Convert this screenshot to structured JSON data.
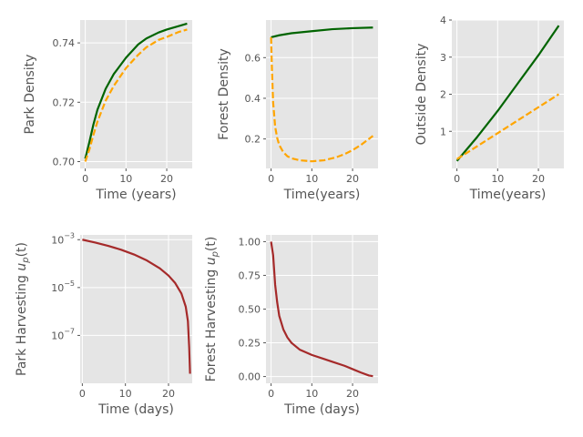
{
  "figure_label": "Five-panel figure",
  "chart_data": [
    {
      "id": "park-density",
      "type": "line",
      "xlabel": "Time (years)",
      "ylabel": "Park Density",
      "xlim": [
        -1.25,
        26.25
      ],
      "ylim": [
        0.6977,
        0.7477
      ],
      "xticks": [
        0,
        10,
        20
      ],
      "yticks": [
        0.7,
        0.72,
        0.74
      ],
      "ytick_labels": [
        "0.70",
        "0.72",
        "0.74"
      ],
      "grid": true,
      "series": [
        {
          "color": "#006400",
          "style": "solid",
          "x": [
            0,
            1,
            2,
            3,
            5,
            7,
            10,
            13,
            15,
            18,
            20,
            23,
            25
          ],
          "y": [
            0.701,
            0.7065,
            0.7125,
            0.7175,
            0.7245,
            0.7295,
            0.735,
            0.7395,
            0.7415,
            0.7435,
            0.7445,
            0.7457,
            0.7465
          ]
        },
        {
          "color": "#FFA500",
          "style": "dashed",
          "x": [
            0,
            1,
            2,
            3,
            5,
            7,
            10,
            13,
            15,
            18,
            20,
            23,
            25
          ],
          "y": [
            0.7,
            0.704,
            0.709,
            0.7135,
            0.7205,
            0.7255,
            0.7315,
            0.736,
            0.7385,
            0.741,
            0.742,
            0.7437,
            0.7445
          ]
        }
      ]
    },
    {
      "id": "forest-density",
      "type": "line",
      "xlabel": "Time(years)",
      "ylabel": "Forest Density",
      "xlim": [
        -1.25,
        26.25
      ],
      "ylim": [
        0.055,
        0.785
      ],
      "xticks": [
        0,
        10,
        20
      ],
      "yticks": [
        0.2,
        0.4,
        0.6
      ],
      "ytick_labels": [
        "0.2",
        "0.4",
        "0.6"
      ],
      "grid": true,
      "series": [
        {
          "color": "#006400",
          "style": "solid",
          "x": [
            0,
            2,
            5,
            10,
            15,
            20,
            25
          ],
          "y": [
            0.7,
            0.71,
            0.72,
            0.73,
            0.74,
            0.745,
            0.748
          ]
        },
        {
          "color": "#FFA500",
          "style": "dashed",
          "x": [
            0,
            0.2,
            0.5,
            1,
            1.5,
            2,
            3,
            4,
            5,
            7,
            10,
            13,
            16,
            18,
            20,
            22,
            25
          ],
          "y": [
            0.7,
            0.55,
            0.38,
            0.26,
            0.205,
            0.17,
            0.135,
            0.115,
            0.105,
            0.095,
            0.09,
            0.095,
            0.11,
            0.125,
            0.145,
            0.17,
            0.215
          ]
        }
      ]
    },
    {
      "id": "outside-density",
      "type": "line",
      "xlabel": "Time(years)",
      "ylabel": "Outside Density",
      "xlim": [
        -1.25,
        26.25
      ],
      "ylim": [
        0.0,
        4.0
      ],
      "xticks": [
        0,
        10,
        20
      ],
      "yticks": [
        1,
        2,
        3,
        4
      ],
      "ytick_labels": [
        "1",
        "2",
        "3",
        "4"
      ],
      "grid": true,
      "series": [
        {
          "color": "#006400",
          "style": "solid",
          "x": [
            0,
            5,
            10,
            15,
            20,
            25
          ],
          "y": [
            0.2,
            0.85,
            1.55,
            2.3,
            3.05,
            3.85
          ]
        },
        {
          "color": "#FFA500",
          "style": "dashed",
          "x": [
            0,
            5,
            10,
            15,
            20,
            25
          ],
          "y": [
            0.25,
            0.6,
            0.95,
            1.3,
            1.65,
            2.0
          ]
        }
      ]
    },
    {
      "id": "park-harvesting",
      "type": "line",
      "xlabel": "Time (days)",
      "ylabel": "Park Harvesting  u_p(t)",
      "ylabel_main": "Park Harvesting  ",
      "ylabel_math": "u",
      "ylabel_sub": "p",
      "ylabel_tail": "(t)",
      "yscale": "log",
      "xlim": [
        -0.5,
        25.5
      ],
      "ylim_log10": [
        -9.0,
        -2.8
      ],
      "xticks": [
        0,
        10,
        20
      ],
      "yticks_log10": [
        -3,
        -5,
        -7
      ],
      "ytick_labels": [
        "10",
        "10",
        "10"
      ],
      "ytick_exponents": [
        "−3",
        "−5",
        "−7"
      ],
      "grid": true,
      "series": [
        {
          "color": "#A52A2A",
          "style": "solid",
          "x": [
            0,
            3,
            6,
            9,
            12,
            15,
            18,
            20,
            21.5,
            23,
            24,
            24.5,
            24.8,
            25
          ],
          "y_log10": [
            -3.0,
            -3.12,
            -3.26,
            -3.42,
            -3.62,
            -3.87,
            -4.2,
            -4.5,
            -4.8,
            -5.25,
            -5.8,
            -6.4,
            -7.5,
            -8.6
          ]
        }
      ]
    },
    {
      "id": "forest-harvesting",
      "type": "line",
      "xlabel": "Time (days)",
      "ylabel": "Forest Harvesting  u_p(t)",
      "ylabel_main": "Forest Harvesting  ",
      "ylabel_math": "u",
      "ylabel_sub": "p",
      "ylabel_tail": "(t)",
      "xlim": [
        -1.25,
        26.25
      ],
      "ylim": [
        -0.05,
        1.05
      ],
      "xticks": [
        0,
        10,
        20
      ],
      "yticks": [
        0.0,
        0.25,
        0.5,
        0.75,
        1.0
      ],
      "ytick_labels": [
        "0.00",
        "0.25",
        "0.50",
        "0.75",
        "1.00"
      ],
      "grid": true,
      "series": [
        {
          "color": "#A52A2A",
          "style": "solid",
          "x": [
            0,
            0.5,
            1,
            1.5,
            2,
            3,
            4,
            5,
            7,
            10,
            13,
            15,
            18,
            20,
            22,
            24,
            25
          ],
          "y": [
            1.0,
            0.9,
            0.68,
            0.55,
            0.45,
            0.35,
            0.29,
            0.25,
            0.2,
            0.16,
            0.13,
            0.11,
            0.08,
            0.055,
            0.03,
            0.008,
            0.003
          ]
        }
      ]
    }
  ]
}
